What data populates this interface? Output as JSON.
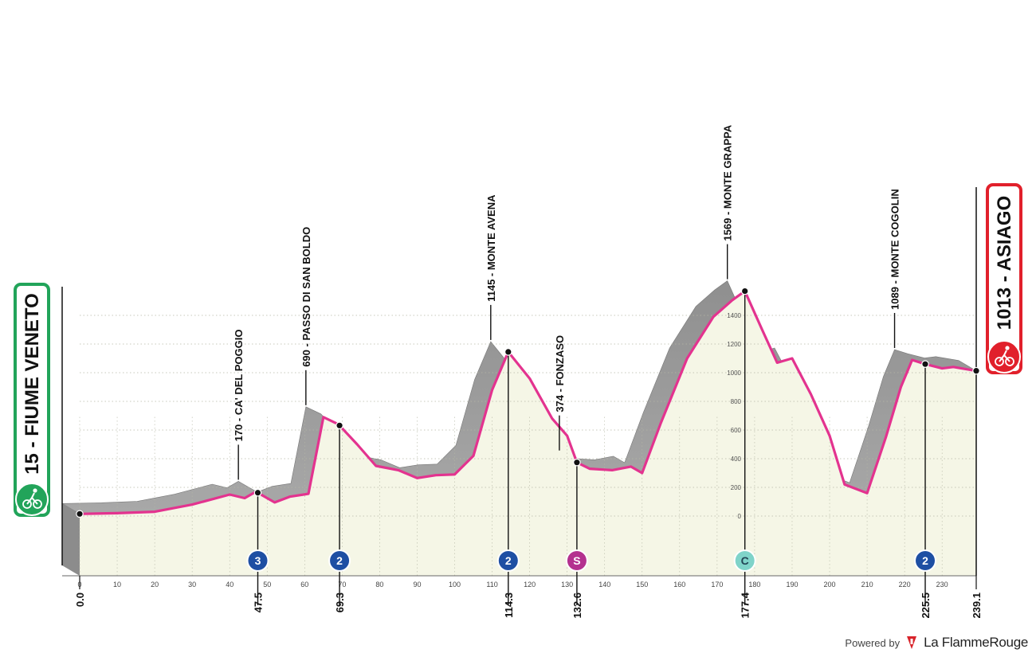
{
  "chart_data": {
    "type": "area",
    "xlim": [
      0,
      239.1
    ],
    "ylim": [
      0,
      1600
    ],
    "x_ticks": [
      0,
      10,
      20,
      30,
      40,
      50,
      60,
      70,
      80,
      90,
      100,
      110,
      120,
      130,
      140,
      150,
      160,
      170,
      180,
      190,
      200,
      210,
      220,
      230
    ],
    "y_ticks": [
      0,
      200,
      400,
      600,
      800,
      1000,
      1200,
      1400
    ],
    "grid": true,
    "profile": [
      [
        0,
        15
      ],
      [
        10,
        20
      ],
      [
        20,
        30
      ],
      [
        30,
        80
      ],
      [
        40,
        150
      ],
      [
        44,
        125
      ],
      [
        47,
        170
      ],
      [
        48,
        155
      ],
      [
        52,
        95
      ],
      [
        56,
        135
      ],
      [
        61,
        155
      ],
      [
        65,
        690
      ],
      [
        69,
        640
      ],
      [
        74,
        500
      ],
      [
        79,
        350
      ],
      [
        85,
        320
      ],
      [
        90,
        265
      ],
      [
        95,
        285
      ],
      [
        100,
        290
      ],
      [
        105,
        420
      ],
      [
        110,
        880
      ],
      [
        114.3,
        1145
      ],
      [
        120,
        960
      ],
      [
        126,
        680
      ],
      [
        130,
        560
      ],
      [
        132.6,
        374
      ],
      [
        136,
        330
      ],
      [
        142,
        320
      ],
      [
        147,
        345
      ],
      [
        150,
        300
      ],
      [
        155,
        650
      ],
      [
        162,
        1100
      ],
      [
        169,
        1390
      ],
      [
        174,
        1505
      ],
      [
        177.4,
        1569
      ],
      [
        182,
        1300
      ],
      [
        186,
        1070
      ],
      [
        190,
        1100
      ],
      [
        195,
        850
      ],
      [
        200,
        560
      ],
      [
        204,
        220
      ],
      [
        210,
        160
      ],
      [
        215,
        550
      ],
      [
        219,
        900
      ],
      [
        222,
        1089
      ],
      [
        225.5,
        1060
      ],
      [
        230,
        1030
      ],
      [
        233,
        1040
      ],
      [
        239.1,
        1013
      ]
    ],
    "start": {
      "label": "15 - FIUME VENETO",
      "x": 0,
      "elev": 15
    },
    "finish": {
      "label": "1013 - ASIAGO",
      "x": 239.1,
      "elev": 1013
    },
    "climbs": [
      {
        "km": 47.5,
        "peak_km": 47,
        "elev": 170,
        "name": "CA' DEL POGGIO",
        "label": "170 - CA' DEL POGGIO",
        "cat": "3",
        "color": "#1e4fa3"
      },
      {
        "km": 69.3,
        "peak_km": 65,
        "elev": 690,
        "name": "PASSO DI SAN BOLDO",
        "label": "690 - PASSO DI SAN BOLDO",
        "cat": "2",
        "color": "#1e4fa3"
      },
      {
        "km": 114.3,
        "peak_km": 114.3,
        "elev": 1145,
        "name": "MONTE AVENA",
        "label": "1145 - MONTE AVENA",
        "cat": "2",
        "color": "#1e4fa3"
      },
      {
        "km": 177.4,
        "peak_km": 177.4,
        "elev": 1569,
        "name": "MONTE GRAPPA",
        "label": "1569 - MONTE GRAPPA",
        "cat": "C",
        "color": "#7fd3c9"
      },
      {
        "km": 225.5,
        "peak_km": 222,
        "elev": 1089,
        "name": "MONTE COGOLIN",
        "label": "1089 - MONTE COGOLIN",
        "cat": "2",
        "color": "#1e4fa3"
      }
    ],
    "sprint": {
      "km": 132.6,
      "elev": 374,
      "label": "374 - FONZASO",
      "cat": "S",
      "color": "#b4318f"
    },
    "km_markers": [
      "0.0",
      "47.5",
      "69.3",
      "114.3",
      "132.6",
      "177.4",
      "225.5",
      "239.1"
    ],
    "km_marker_values": [
      0,
      47.5,
      69.3,
      114.3,
      132.6,
      177.4,
      225.5,
      239.1
    ]
  },
  "colors": {
    "fill": "#f5f6e6",
    "side": "#9a9a9a",
    "edge": "#e3338f",
    "start": "#22a45a",
    "finish": "#e1202b",
    "grid": "#b5b7a5"
  },
  "footer": {
    "powered": "Powered by",
    "brand": "La FlammeRouge"
  }
}
